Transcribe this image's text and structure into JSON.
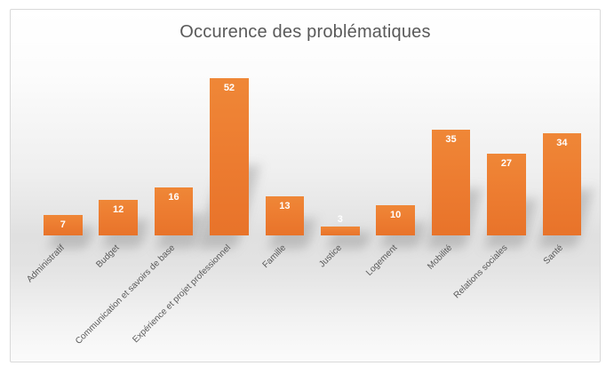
{
  "chart_data": {
    "type": "bar",
    "title": "Occurence des problématiques",
    "categories": [
      "Administratif",
      "Budget",
      "Communication et savoirs de base",
      "Expérience et projet professionnel",
      "Famille",
      "Justice",
      "Logement",
      "Mobilité",
      "Relations sociales",
      "Santé"
    ],
    "values": [
      7,
      12,
      16,
      52,
      13,
      3,
      10,
      35,
      27,
      34
    ],
    "xlabel": "",
    "ylabel": "",
    "ylim": [
      0,
      60
    ],
    "grid": false,
    "legend": "none",
    "data_label_position": "inside-end",
    "colors": {
      "bar": "#ED7D31",
      "data_label": "#FFFFFF",
      "title": "#595959",
      "axis_text": "#595959",
      "chart_border": "#D9D9D9"
    }
  }
}
